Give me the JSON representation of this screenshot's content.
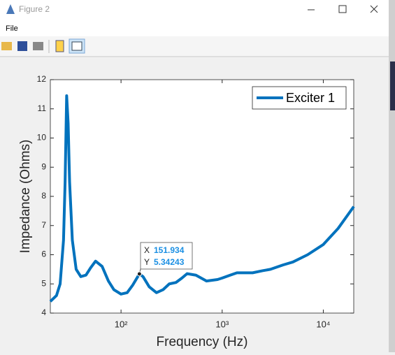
{
  "window": {
    "title": "Figure 2",
    "menu": [
      "File"
    ]
  },
  "chart_data": {
    "type": "line",
    "xlabel": "Frequency (Hz)",
    "ylabel": "Impedance (Ohms)",
    "x": [
      20,
      23,
      25,
      27,
      28,
      29,
      30,
      31,
      33,
      36,
      40,
      45,
      50,
      56,
      65,
      75,
      85,
      100,
      115,
      130,
      151.934,
      165,
      190,
      224,
      260,
      300,
      350,
      400,
      450,
      550,
      700,
      900,
      1000,
      1200,
      1400,
      2000,
      2500,
      3000,
      4000,
      5000,
      7000,
      10000,
      14000,
      20000
    ],
    "series": [
      {
        "name": "Exciter 1",
        "color": "#0072bd",
        "values": [
          4.4,
          4.6,
          5.0,
          6.5,
          8.5,
          11.45,
          10.5,
          8.5,
          6.5,
          5.5,
          5.25,
          5.3,
          5.55,
          5.78,
          5.6,
          5.1,
          4.8,
          4.65,
          4.7,
          4.95,
          5.34243,
          5.25,
          4.9,
          4.7,
          4.8,
          5.0,
          5.05,
          5.2,
          5.35,
          5.3,
          5.1,
          5.15,
          5.2,
          5.3,
          5.38,
          5.38,
          5.45,
          5.5,
          5.65,
          5.75,
          6.0,
          6.35,
          6.9,
          7.65
        ]
      }
    ],
    "xlim": [
      20,
      20000
    ],
    "ylim": [
      4,
      12
    ],
    "xscale": "log",
    "xticks": [
      {
        "value": 100,
        "label": "10²"
      },
      {
        "value": 1000,
        "label": "10³"
      },
      {
        "value": 10000,
        "label": "10⁴"
      }
    ],
    "yticks": [
      4,
      5,
      6,
      7,
      8,
      9,
      10,
      11,
      12
    ],
    "legend": "upper right",
    "datatip": {
      "x_label": "X",
      "x": 151.934,
      "y_label": "Y",
      "y": 5.34243
    }
  }
}
